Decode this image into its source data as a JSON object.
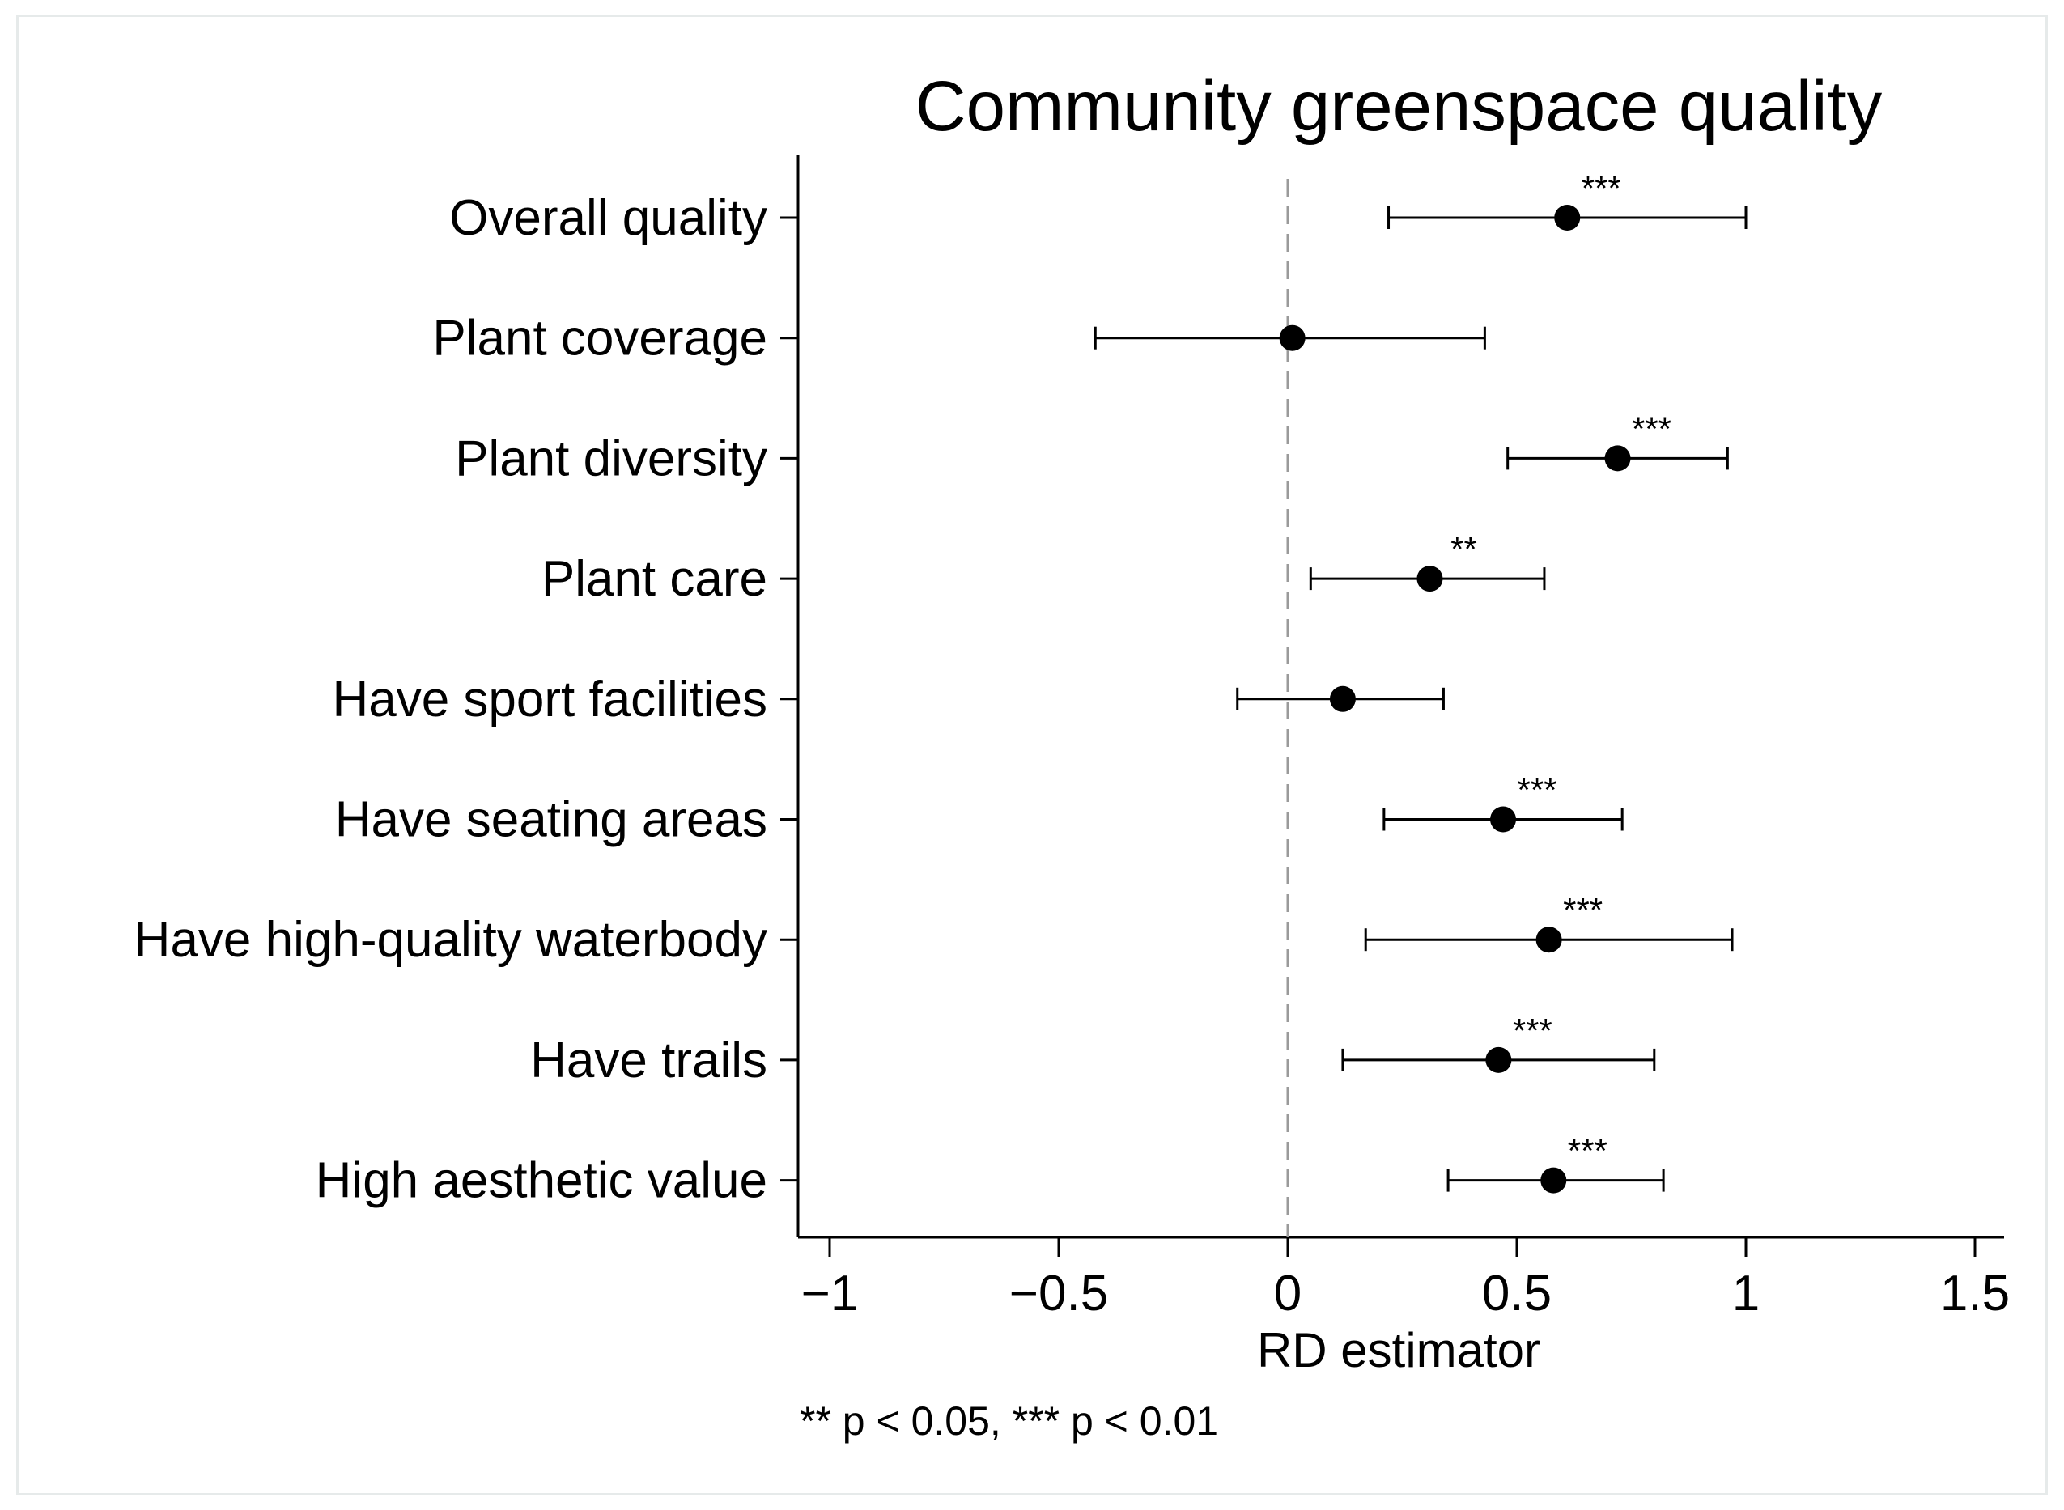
{
  "chart_data": {
    "type": "coefficient_plot",
    "title": "Community greenspace quality",
    "xlabel": "RD estimator",
    "ylabel": "",
    "xlim": [
      -1.07,
      1.57
    ],
    "xticks": [
      -1,
      -0.5,
      0,
      0.5,
      1,
      1.5
    ],
    "xtick_labels": [
      "−1",
      "−0.5",
      "0",
      "0.5",
      "1",
      "1.5"
    ],
    "reference_line": {
      "x": 0,
      "style": "dashed"
    },
    "note": "** p < 0.05, *** p < 0.01",
    "series": [
      {
        "label": "Overall quality",
        "estimate": 0.61,
        "ci_low": 0.22,
        "ci_high": 1.0,
        "stars": "***"
      },
      {
        "label": "Plant coverage",
        "estimate": 0.01,
        "ci_low": -0.42,
        "ci_high": 0.43,
        "stars": ""
      },
      {
        "label": "Plant diversity",
        "estimate": 0.72,
        "ci_low": 0.48,
        "ci_high": 0.96,
        "stars": "***"
      },
      {
        "label": "Plant care",
        "estimate": 0.31,
        "ci_low": 0.05,
        "ci_high": 0.56,
        "stars": "**"
      },
      {
        "label": "Have sport facilities",
        "estimate": 0.12,
        "ci_low": -0.11,
        "ci_high": 0.34,
        "stars": ""
      },
      {
        "label": "Have seating areas",
        "estimate": 0.47,
        "ci_low": 0.21,
        "ci_high": 0.73,
        "stars": "***"
      },
      {
        "label": "Have high-quality waterbody",
        "estimate": 0.57,
        "ci_low": 0.17,
        "ci_high": 0.97,
        "stars": "***"
      },
      {
        "label": "Have trails",
        "estimate": 0.46,
        "ci_low": 0.12,
        "ci_high": 0.8,
        "stars": "***"
      },
      {
        "label": "High aesthetic value",
        "estimate": 0.58,
        "ci_low": 0.35,
        "ci_high": 0.82,
        "stars": "***"
      }
    ]
  }
}
